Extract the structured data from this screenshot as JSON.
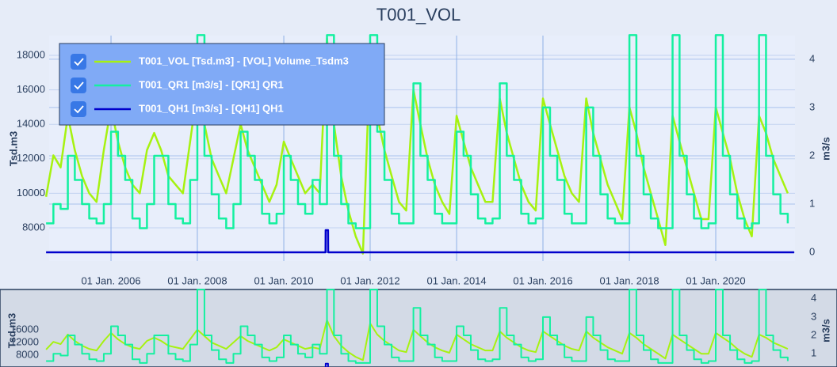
{
  "chart_data": {
    "type": "line",
    "title": "T001_VOL",
    "y_label": "Tsd.m3",
    "y2_label": "m3/s",
    "xlim": [
      "2004-07-27",
      "2021-11-01"
    ],
    "xticks": [
      {
        "value": "2006-01-01",
        "label": "01 Jan. 2006"
      },
      {
        "value": "2008-01-01",
        "label": "01 Jan. 2008"
      },
      {
        "value": "2010-01-01",
        "label": "01 Jan. 2010"
      },
      {
        "value": "2012-01-01",
        "label": "01 Jan. 2012"
      },
      {
        "value": "2014-01-01",
        "label": "01 Jan. 2014"
      },
      {
        "value": "2016-01-01",
        "label": "01 Jan. 2016"
      },
      {
        "value": "2018-01-01",
        "label": "01 Jan. 2018"
      },
      {
        "value": "2020-01-01",
        "label": "01 Jan. 2020"
      }
    ],
    "ylim": [
      6070,
      19150
    ],
    "yticks": [
      8000,
      10000,
      12000,
      14000,
      16000,
      18000
    ],
    "y2lim": [
      -0.18,
      4.49
    ],
    "y2ticks": [
      0,
      1,
      2,
      3,
      4
    ],
    "grid": true,
    "legend": "top-left",
    "x": [
      "2004-07-01",
      "2004-09-01",
      "2004-11-01",
      "2005-01-01",
      "2005-03-01",
      "2005-05-01",
      "2005-07-01",
      "2005-09-01",
      "2005-11-01",
      "2006-01-01",
      "2006-03-01",
      "2006-05-01",
      "2006-07-01",
      "2006-09-01",
      "2006-11-01",
      "2007-01-01",
      "2007-03-01",
      "2007-05-01",
      "2007-07-01",
      "2007-09-01",
      "2007-11-01",
      "2008-01-01",
      "2008-03-01",
      "2008-05-01",
      "2008-07-01",
      "2008-09-01",
      "2008-11-01",
      "2009-01-01",
      "2009-03-01",
      "2009-05-01",
      "2009-07-01",
      "2009-09-01",
      "2009-11-01",
      "2010-01-01",
      "2010-03-01",
      "2010-05-01",
      "2010-07-01",
      "2010-09-01",
      "2010-11-01",
      "2011-01-01",
      "2011-03-01",
      "2011-05-01",
      "2011-07-01",
      "2011-09-01",
      "2011-11-01",
      "2012-01-01",
      "2012-03-01",
      "2012-05-01",
      "2012-07-01",
      "2012-09-01",
      "2012-11-01",
      "2013-01-01",
      "2013-03-01",
      "2013-05-01",
      "2013-07-01",
      "2013-09-01",
      "2013-11-01",
      "2014-01-01",
      "2014-03-01",
      "2014-05-01",
      "2014-07-01",
      "2014-09-01",
      "2014-11-01",
      "2015-01-01",
      "2015-03-01",
      "2015-05-01",
      "2015-07-01",
      "2015-09-01",
      "2015-11-01",
      "2016-01-01",
      "2016-03-01",
      "2016-05-01",
      "2016-07-01",
      "2016-09-01",
      "2016-11-01",
      "2017-01-01",
      "2017-03-01",
      "2017-05-01",
      "2017-07-01",
      "2017-09-01",
      "2017-11-01",
      "2018-01-01",
      "2018-03-01",
      "2018-05-01",
      "2018-07-01",
      "2018-09-01",
      "2018-11-01",
      "2019-01-01",
      "2019-03-01",
      "2019-05-01",
      "2019-07-01",
      "2019-09-01",
      "2019-11-01",
      "2020-01-01",
      "2020-03-01",
      "2020-05-01",
      "2020-07-01",
      "2020-09-01",
      "2020-11-01",
      "2021-01-01",
      "2021-03-01",
      "2021-05-01",
      "2021-07-01",
      "2021-09-01"
    ],
    "series": [
      {
        "name": "T001_VOL [Tsd.m3] - [VOL] Volume_Tsdm3",
        "color": "#a6f210",
        "line_shape": "linear",
        "values": [
          9800,
          12200,
          11500,
          14500,
          12500,
          11000,
          10000,
          9500,
          12500,
          15000,
          13000,
          11500,
          10500,
          10000,
          12500,
          13500,
          12500,
          11000,
          10500,
          10000,
          13000,
          16000,
          14000,
          12000,
          11000,
          10000,
          12000,
          14000,
          12500,
          11500,
          10500,
          9500,
          10500,
          13000,
          12000,
          11000,
          10000,
          10500,
          10000,
          19000,
          14000,
          11000,
          9000,
          7500,
          6500,
          18000,
          14500,
          12500,
          11000,
          9500,
          9000,
          16000,
          14000,
          12000,
          10500,
          9500,
          8800,
          14500,
          13000,
          11500,
          10500,
          9500,
          9500,
          15500,
          13500,
          12000,
          10500,
          9500,
          9000,
          15500,
          14000,
          12500,
          11000,
          10000,
          9500,
          15500,
          13500,
          12000,
          10500,
          9500,
          8500,
          15000,
          13500,
          11500,
          10000,
          8500,
          7000,
          14500,
          13000,
          11500,
          10000,
          8500,
          8500,
          15000,
          13500,
          12000,
          10000,
          8500,
          7500,
          14500,
          13500,
          12000,
          11000,
          10000
        ]
      },
      {
        "name": "T001_QR1 [m3/s] - [QR1] QR1",
        "color": "#14f0a0",
        "axis": "y2",
        "line_shape": "hv",
        "values": [
          0.6,
          1.0,
          0.9,
          2.0,
          1.5,
          1.0,
          0.7,
          0.6,
          1.0,
          2.5,
          2.0,
          1.5,
          0.7,
          0.5,
          1.0,
          2.0,
          2.0,
          1.0,
          0.7,
          0.6,
          1.5,
          4.5,
          2.0,
          1.2,
          0.7,
          0.5,
          1.0,
          2.5,
          2.0,
          1.5,
          0.8,
          0.6,
          0.8,
          2.0,
          1.5,
          1.0,
          0.8,
          1.5,
          1.0,
          4.5,
          2.0,
          1.0,
          0.6,
          0.5,
          0.5,
          4.5,
          2.5,
          1.5,
          0.8,
          0.6,
          0.6,
          3.5,
          2.0,
          1.5,
          0.8,
          0.6,
          0.6,
          2.5,
          2.0,
          1.2,
          0.7,
          0.6,
          0.7,
          3.5,
          2.0,
          1.5,
          0.8,
          0.6,
          0.7,
          3.0,
          2.0,
          1.5,
          0.8,
          0.6,
          0.6,
          3.0,
          2.0,
          1.2,
          0.7,
          0.6,
          0.6,
          4.5,
          2.0,
          1.2,
          0.7,
          0.5,
          0.5,
          4.5,
          2.0,
          1.2,
          0.7,
          0.5,
          0.6,
          4.5,
          2.0,
          1.2,
          0.7,
          0.5,
          0.6,
          4.5,
          2.0,
          1.2,
          0.8,
          0.6
        ]
      },
      {
        "name": "T001_QH1 [m3/s] - [QH1] QH1",
        "color": "#0000cc",
        "axis": "y2",
        "line_shape": "linear",
        "x": [
          "2004-07-01",
          "2010-12-20",
          "2010-12-21",
          "2011-01-10",
          "2011-01-11",
          "2021-10-25"
        ],
        "values": [
          0,
          0,
          0.46,
          0.46,
          0,
          0
        ]
      }
    ],
    "rangeslider": {
      "ylim": [
        4600,
        28300
      ],
      "yticks": [
        8000,
        12000,
        16000
      ],
      "y2lim": [
        0.32,
        4.46
      ],
      "y2ticks": [
        1,
        2,
        3,
        4
      ]
    }
  }
}
